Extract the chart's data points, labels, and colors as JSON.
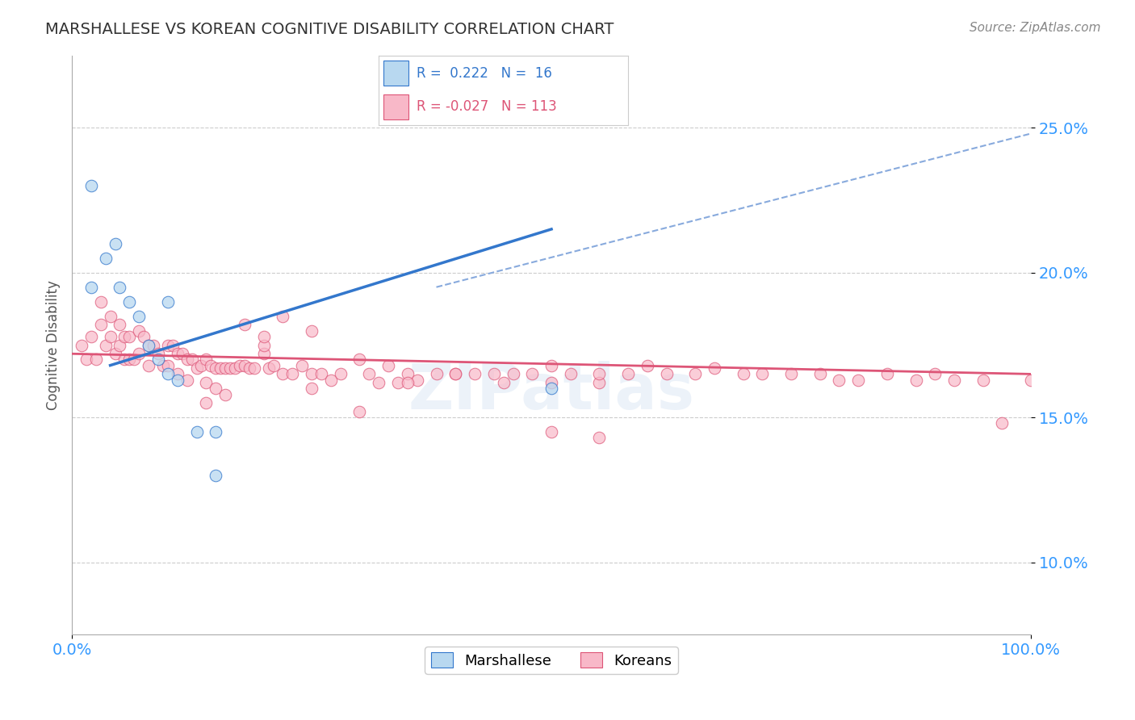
{
  "title": "MARSHALLESE VS KOREAN COGNITIVE DISABILITY CORRELATION CHART",
  "source": "Source: ZipAtlas.com",
  "ylabel": "Cognitive Disability",
  "xlim": [
    0.0,
    1.0
  ],
  "ylim": [
    0.075,
    0.275
  ],
  "ytick_labels": [
    "10.0%",
    "15.0%",
    "20.0%",
    "25.0%"
  ],
  "ytick_values": [
    0.1,
    0.15,
    0.2,
    0.25
  ],
  "background_color": "#ffffff",
  "grid_color": "#cccccc",
  "marshallese_color": "#b8d8f0",
  "korean_color": "#f8b8c8",
  "marshallese_line_color": "#3377cc",
  "korean_line_color": "#dd5577",
  "trend_dash_color": "#88aadd",
  "marshallese_R": 0.222,
  "marshallese_N": 16,
  "korean_R": -0.027,
  "korean_N": 113,
  "marshallese_x": [
    0.02,
    0.035,
    0.05,
    0.06,
    0.07,
    0.08,
    0.09,
    0.1,
    0.11,
    0.13,
    0.15,
    0.15,
    0.5,
    0.02,
    0.045,
    0.1
  ],
  "marshallese_y": [
    0.23,
    0.205,
    0.195,
    0.19,
    0.185,
    0.175,
    0.17,
    0.165,
    0.163,
    0.145,
    0.13,
    0.145,
    0.16,
    0.195,
    0.21,
    0.19
  ],
  "korean_x": [
    0.01,
    0.015,
    0.02,
    0.025,
    0.03,
    0.03,
    0.035,
    0.04,
    0.04,
    0.045,
    0.05,
    0.05,
    0.055,
    0.055,
    0.06,
    0.06,
    0.065,
    0.07,
    0.07,
    0.075,
    0.08,
    0.08,
    0.085,
    0.09,
    0.095,
    0.1,
    0.1,
    0.105,
    0.11,
    0.11,
    0.115,
    0.12,
    0.12,
    0.125,
    0.13,
    0.135,
    0.14,
    0.14,
    0.145,
    0.15,
    0.15,
    0.155,
    0.16,
    0.165,
    0.17,
    0.175,
    0.18,
    0.185,
    0.19,
    0.2,
    0.205,
    0.21,
    0.22,
    0.23,
    0.24,
    0.25,
    0.26,
    0.27,
    0.28,
    0.3,
    0.31,
    0.32,
    0.33,
    0.34,
    0.35,
    0.36,
    0.38,
    0.4,
    0.42,
    0.44,
    0.46,
    0.48,
    0.5,
    0.5,
    0.52,
    0.55,
    0.55,
    0.58,
    0.6,
    0.62,
    0.65,
    0.67,
    0.7,
    0.72,
    0.75,
    0.78,
    0.8,
    0.82,
    0.85,
    0.88,
    0.9,
    0.92,
    0.95,
    0.97,
    1.0,
    0.25,
    0.3,
    0.35,
    0.4,
    0.45,
    0.2,
    0.25,
    0.18,
    0.2,
    0.22,
    0.14,
    0.16,
    0.5,
    0.55
  ],
  "korean_y": [
    0.175,
    0.17,
    0.178,
    0.17,
    0.19,
    0.182,
    0.175,
    0.185,
    0.178,
    0.172,
    0.182,
    0.175,
    0.178,
    0.17,
    0.178,
    0.17,
    0.17,
    0.18,
    0.172,
    0.178,
    0.175,
    0.168,
    0.175,
    0.172,
    0.168,
    0.175,
    0.168,
    0.175,
    0.172,
    0.165,
    0.172,
    0.17,
    0.163,
    0.17,
    0.167,
    0.168,
    0.17,
    0.162,
    0.168,
    0.167,
    0.16,
    0.167,
    0.167,
    0.167,
    0.167,
    0.168,
    0.168,
    0.167,
    0.167,
    0.172,
    0.167,
    0.168,
    0.165,
    0.165,
    0.168,
    0.165,
    0.165,
    0.163,
    0.165,
    0.17,
    0.165,
    0.162,
    0.168,
    0.162,
    0.165,
    0.163,
    0.165,
    0.165,
    0.165,
    0.165,
    0.165,
    0.165,
    0.168,
    0.162,
    0.165,
    0.162,
    0.165,
    0.165,
    0.168,
    0.165,
    0.165,
    0.167,
    0.165,
    0.165,
    0.165,
    0.165,
    0.163,
    0.163,
    0.165,
    0.163,
    0.165,
    0.163,
    0.163,
    0.148,
    0.163,
    0.16,
    0.152,
    0.162,
    0.165,
    0.162,
    0.175,
    0.18,
    0.182,
    0.178,
    0.185,
    0.155,
    0.158,
    0.145,
    0.143
  ],
  "blue_line_x": [
    0.04,
    0.5
  ],
  "blue_line_y": [
    0.168,
    0.215
  ],
  "pink_line_x": [
    0.0,
    1.0
  ],
  "pink_line_y": [
    0.172,
    0.165
  ],
  "dash_line_x": [
    0.38,
    1.0
  ],
  "dash_line_y": [
    0.195,
    0.248
  ]
}
